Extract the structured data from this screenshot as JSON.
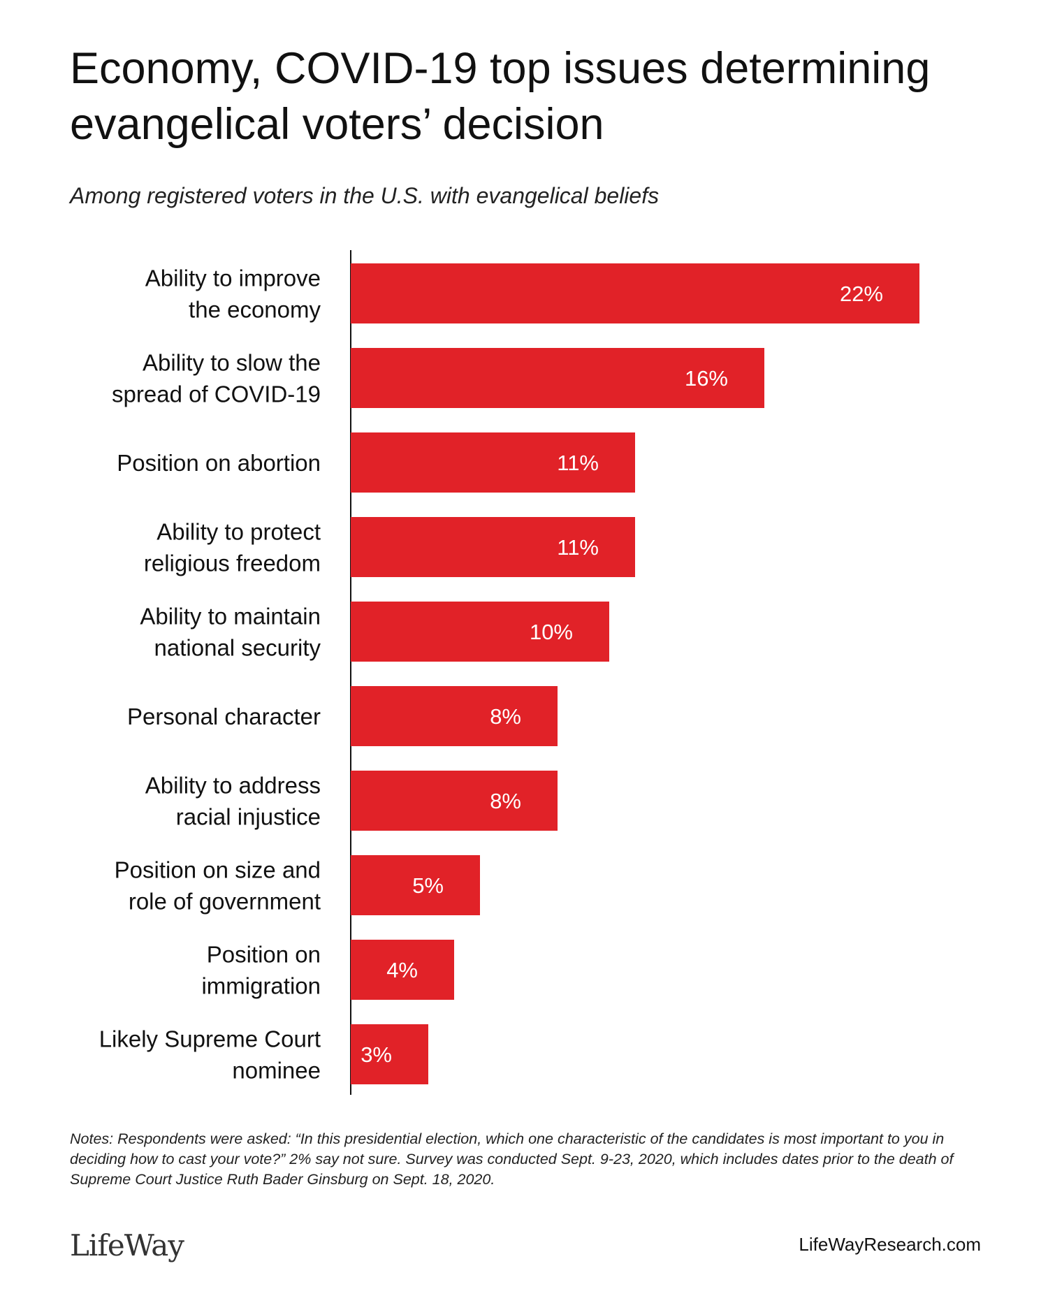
{
  "header": {
    "title": "Economy, COVID-19 top issues determining evangelical voters’ decision",
    "subtitle": "Among registered voters in the U.S. with evangelical beliefs"
  },
  "chart_data": {
    "type": "bar",
    "orientation": "horizontal",
    "categories": [
      [
        "Ability to improve",
        "the economy"
      ],
      [
        "Ability to slow the",
        "spread of COVID-19"
      ],
      [
        "Position on abortion"
      ],
      [
        "Ability to protect",
        "religious freedom"
      ],
      [
        "Ability to maintain",
        "national security"
      ],
      [
        "Personal character"
      ],
      [
        "Ability to address",
        "racial injustice"
      ],
      [
        "Position on size and",
        "role of government"
      ],
      [
        "Position on",
        "immigration"
      ],
      [
        "Likely Supreme Court",
        "nominee"
      ]
    ],
    "values": [
      22,
      16,
      11,
      11,
      10,
      8,
      8,
      5,
      4,
      3
    ],
    "value_labels": [
      "22%",
      "16%",
      "11%",
      "11%",
      "10%",
      "8%",
      "8%",
      "5%",
      "4%",
      "3%"
    ],
    "unit": "%",
    "bar_color": "#e12228",
    "label_color": "#ffffff",
    "grid": false
  },
  "footer": {
    "notes": "Notes: Respondents were asked: “In this presidential election, which one characteristic of the candidates is most important to you in deciding how to cast your vote?”  2% say not sure. Survey was conducted Sept. 9-23, 2020, which includes dates prior to the death of Supreme Court Justice Ruth Bader Ginsburg on Sept. 18, 2020.",
    "logo": "LifeWay",
    "site": "LifeWayResearch.com"
  }
}
